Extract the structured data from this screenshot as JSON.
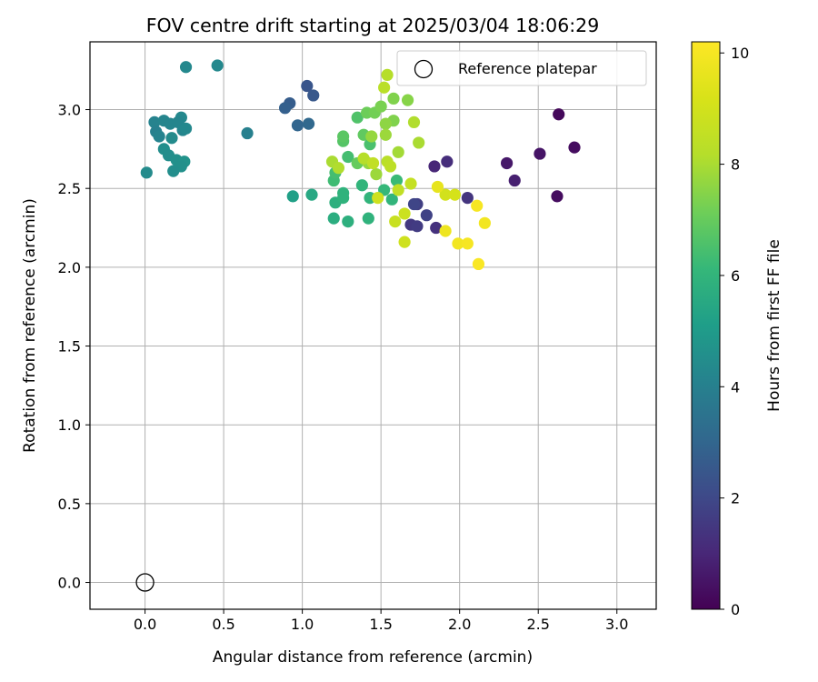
{
  "chart_data": {
    "type": "scatter",
    "title": "FOV centre drift starting at 2025/03/04 18:06:29",
    "xlabel": "Angular distance from reference (arcmin)",
    "ylabel": "Rotation from reference (arcmin)",
    "xlim": [
      -0.35,
      3.25
    ],
    "ylim": [
      -0.17,
      3.43
    ],
    "xticks": [
      "0.0",
      "0.5",
      "1.0",
      "1.5",
      "2.0",
      "2.5",
      "3.0"
    ],
    "xtick_values": [
      0,
      0.5,
      1.0,
      1.5,
      2.0,
      2.5,
      3.0
    ],
    "yticks": [
      "0.0",
      "0.5",
      "1.0",
      "1.5",
      "2.0",
      "2.5",
      "3.0"
    ],
    "ytick_values": [
      0,
      0.5,
      1.0,
      1.5,
      2.0,
      2.5,
      3.0
    ],
    "grid": true,
    "legend": {
      "placement": "top-right",
      "entries": [
        {
          "name": "Reference platepar",
          "marker": "hollow-circle"
        }
      ]
    },
    "reference_point": {
      "x": 0.0,
      "y": 0.0
    },
    "colorbar": {
      "label": "Hours from first FF file",
      "colormap": "viridis",
      "range": [
        0,
        10.2
      ],
      "ticks": [
        "0",
        "2",
        "4",
        "6",
        "8",
        "10"
      ],
      "tick_values": [
        0,
        2,
        4,
        6,
        8,
        10
      ]
    },
    "points": [
      {
        "x": 2.63,
        "y": 2.97,
        "c": 0.2
      },
      {
        "x": 2.73,
        "y": 2.76,
        "c": 0.3
      },
      {
        "x": 2.51,
        "y": 2.72,
        "c": 0.5
      },
      {
        "x": 2.3,
        "y": 2.66,
        "c": 0.6
      },
      {
        "x": 2.35,
        "y": 2.55,
        "c": 0.8
      },
      {
        "x": 2.62,
        "y": 2.45,
        "c": 0.3
      },
      {
        "x": 1.84,
        "y": 2.64,
        "c": 1.0
      },
      {
        "x": 1.92,
        "y": 2.67,
        "c": 1.2
      },
      {
        "x": 2.05,
        "y": 2.44,
        "c": 1.4
      },
      {
        "x": 1.69,
        "y": 2.27,
        "c": 1.5
      },
      {
        "x": 1.73,
        "y": 2.26,
        "c": 1.6
      },
      {
        "x": 1.73,
        "y": 2.4,
        "c": 1.7
      },
      {
        "x": 1.79,
        "y": 2.33,
        "c": 1.8
      },
      {
        "x": 1.85,
        "y": 2.25,
        "c": 1.3
      },
      {
        "x": 1.71,
        "y": 2.4,
        "c": 1.9
      },
      {
        "x": 1.03,
        "y": 3.15,
        "c": 2.4
      },
      {
        "x": 1.07,
        "y": 3.09,
        "c": 2.5
      },
      {
        "x": 0.92,
        "y": 3.04,
        "c": 2.7
      },
      {
        "x": 0.89,
        "y": 3.01,
        "c": 2.8
      },
      {
        "x": 0.97,
        "y": 2.9,
        "c": 3.0
      },
      {
        "x": 1.04,
        "y": 2.91,
        "c": 3.1
      },
      {
        "x": 0.26,
        "y": 3.27,
        "c": 4.3
      },
      {
        "x": 0.46,
        "y": 3.28,
        "c": 4.3
      },
      {
        "x": 0.65,
        "y": 2.85,
        "c": 4.0
      },
      {
        "x": 0.06,
        "y": 2.92,
        "c": 4.1
      },
      {
        "x": 0.12,
        "y": 2.93,
        "c": 4.2
      },
      {
        "x": 0.16,
        "y": 2.91,
        "c": 4.2
      },
      {
        "x": 0.23,
        "y": 2.95,
        "c": 4.3
      },
      {
        "x": 0.21,
        "y": 2.92,
        "c": 4.2
      },
      {
        "x": 0.07,
        "y": 2.86,
        "c": 4.0
      },
      {
        "x": 0.09,
        "y": 2.83,
        "c": 4.1
      },
      {
        "x": 0.24,
        "y": 2.87,
        "c": 4.2
      },
      {
        "x": 0.26,
        "y": 2.88,
        "c": 4.3
      },
      {
        "x": 0.17,
        "y": 2.82,
        "c": 4.4
      },
      {
        "x": 0.12,
        "y": 2.75,
        "c": 4.5
      },
      {
        "x": 0.15,
        "y": 2.71,
        "c": 4.5
      },
      {
        "x": 0.2,
        "y": 2.68,
        "c": 4.6
      },
      {
        "x": 0.25,
        "y": 2.67,
        "c": 4.7
      },
      {
        "x": 0.23,
        "y": 2.64,
        "c": 4.6
      },
      {
        "x": 0.18,
        "y": 2.61,
        "c": 4.5
      },
      {
        "x": 0.01,
        "y": 2.6,
        "c": 4.4
      },
      {
        "x": 0.94,
        "y": 2.45,
        "c": 5.2
      },
      {
        "x": 1.06,
        "y": 2.46,
        "c": 5.5
      },
      {
        "x": 1.2,
        "y": 2.31,
        "c": 5.7
      },
      {
        "x": 1.29,
        "y": 2.29,
        "c": 5.8
      },
      {
        "x": 1.42,
        "y": 2.31,
        "c": 5.9
      },
      {
        "x": 1.21,
        "y": 2.41,
        "c": 5.8
      },
      {
        "x": 1.26,
        "y": 2.44,
        "c": 5.9
      },
      {
        "x": 1.26,
        "y": 2.47,
        "c": 5.9
      },
      {
        "x": 1.43,
        "y": 2.44,
        "c": 6.0
      },
      {
        "x": 1.57,
        "y": 2.43,
        "c": 6.0
      },
      {
        "x": 1.52,
        "y": 2.49,
        "c": 6.1
      },
      {
        "x": 1.6,
        "y": 2.55,
        "c": 6.2
      },
      {
        "x": 1.38,
        "y": 2.52,
        "c": 6.0
      },
      {
        "x": 1.2,
        "y": 2.55,
        "c": 6.3
      },
      {
        "x": 1.21,
        "y": 2.6,
        "c": 6.4
      },
      {
        "x": 1.29,
        "y": 2.7,
        "c": 6.4
      },
      {
        "x": 1.43,
        "y": 2.78,
        "c": 6.5
      },
      {
        "x": 1.35,
        "y": 2.95,
        "c": 6.6
      },
      {
        "x": 1.26,
        "y": 2.8,
        "c": 6.7
      },
      {
        "x": 1.26,
        "y": 2.83,
        "c": 6.8
      },
      {
        "x": 1.39,
        "y": 2.84,
        "c": 6.9
      },
      {
        "x": 1.35,
        "y": 2.66,
        "c": 7.0
      },
      {
        "x": 1.41,
        "y": 2.98,
        "c": 7.1
      },
      {
        "x": 1.46,
        "y": 2.98,
        "c": 7.2
      },
      {
        "x": 1.5,
        "y": 3.02,
        "c": 7.3
      },
      {
        "x": 1.58,
        "y": 3.07,
        "c": 7.4
      },
      {
        "x": 1.67,
        "y": 3.06,
        "c": 7.5
      },
      {
        "x": 1.58,
        "y": 2.93,
        "c": 7.4
      },
      {
        "x": 1.53,
        "y": 2.91,
        "c": 7.6
      },
      {
        "x": 1.44,
        "y": 2.83,
        "c": 7.7
      },
      {
        "x": 1.53,
        "y": 2.84,
        "c": 7.8
      },
      {
        "x": 1.42,
        "y": 2.66,
        "c": 7.7
      },
      {
        "x": 1.47,
        "y": 2.59,
        "c": 7.8
      },
      {
        "x": 1.61,
        "y": 2.73,
        "c": 7.9
      },
      {
        "x": 1.74,
        "y": 2.79,
        "c": 8.0
      },
      {
        "x": 1.71,
        "y": 2.92,
        "c": 8.1
      },
      {
        "x": 1.54,
        "y": 3.22,
        "c": 8.2
      },
      {
        "x": 1.52,
        "y": 3.14,
        "c": 8.3
      },
      {
        "x": 1.19,
        "y": 2.67,
        "c": 8.0
      },
      {
        "x": 1.23,
        "y": 2.63,
        "c": 8.1
      },
      {
        "x": 1.39,
        "y": 2.69,
        "c": 8.2
      },
      {
        "x": 1.54,
        "y": 2.67,
        "c": 8.3
      },
      {
        "x": 1.56,
        "y": 2.64,
        "c": 8.4
      },
      {
        "x": 1.45,
        "y": 2.66,
        "c": 8.5
      },
      {
        "x": 1.69,
        "y": 2.53,
        "c": 8.6
      },
      {
        "x": 1.61,
        "y": 2.49,
        "c": 8.5
      },
      {
        "x": 1.65,
        "y": 2.34,
        "c": 8.8
      },
      {
        "x": 1.59,
        "y": 2.29,
        "c": 8.7
      },
      {
        "x": 1.65,
        "y": 2.16,
        "c": 8.9
      },
      {
        "x": 1.48,
        "y": 2.44,
        "c": 8.9
      },
      {
        "x": 1.91,
        "y": 2.46,
        "c": 9.0
      },
      {
        "x": 1.97,
        "y": 2.46,
        "c": 9.1
      },
      {
        "x": 1.86,
        "y": 2.51,
        "c": 9.6
      },
      {
        "x": 1.91,
        "y": 2.23,
        "c": 9.8
      },
      {
        "x": 1.99,
        "y": 2.15,
        "c": 9.9
      },
      {
        "x": 2.05,
        "y": 2.15,
        "c": 10.0
      },
      {
        "x": 2.11,
        "y": 2.39,
        "c": 10.0
      },
      {
        "x": 2.16,
        "y": 2.28,
        "c": 9.9
      },
      {
        "x": 2.12,
        "y": 2.02,
        "c": 10.1
      }
    ]
  }
}
